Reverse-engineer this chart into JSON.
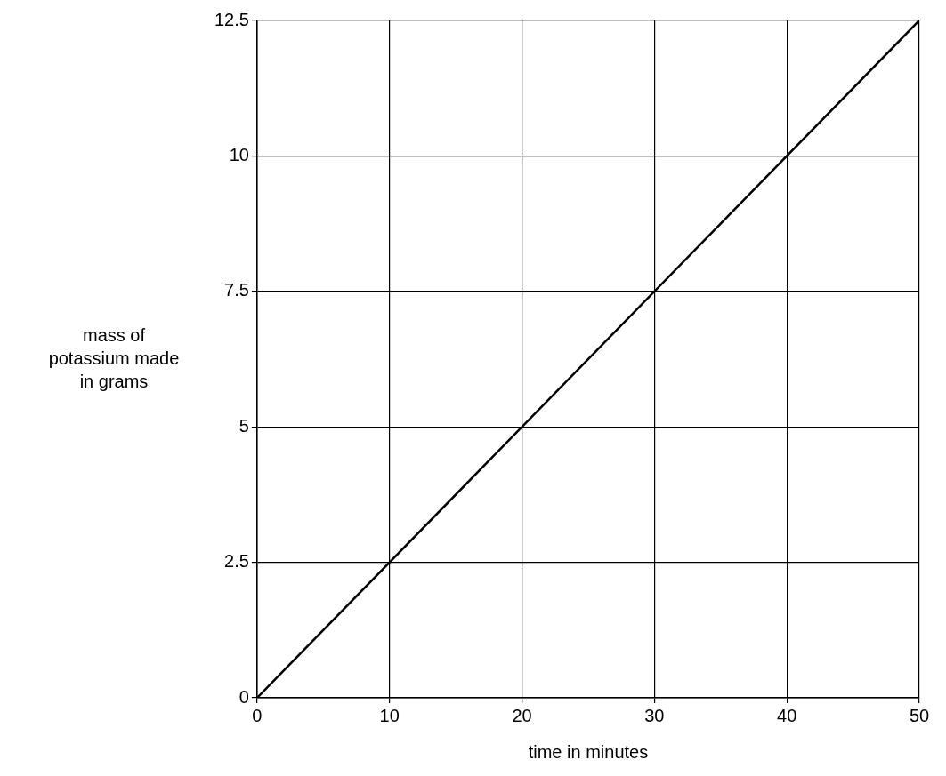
{
  "chart_data": {
    "type": "line",
    "xlabel": "time in minutes",
    "ylabel": "mass of potassium made in grams",
    "x": [
      0,
      50
    ],
    "series": [
      {
        "color": "#000000",
        "values": [
          0,
          12.5
        ]
      }
    ],
    "xlim": [
      0,
      50
    ],
    "xticks": [
      0,
      10,
      20,
      30,
      40,
      50
    ],
    "ylim": [
      0,
      12.5
    ],
    "yticks": [
      0,
      2.5,
      5,
      7.5,
      10,
      12.5
    ],
    "grid": true,
    "legend": false,
    "marker": "none",
    "line_style": "solid"
  }
}
